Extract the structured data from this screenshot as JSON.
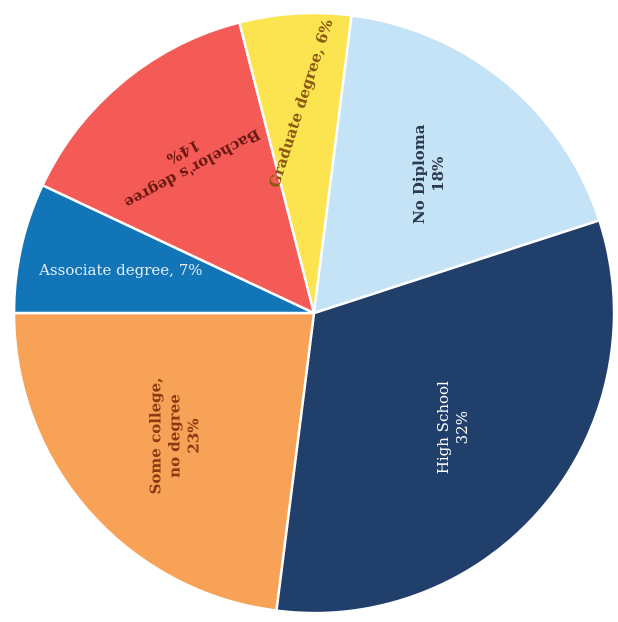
{
  "chart_data": {
    "type": "pie",
    "title": "",
    "start_angle_deg": -18,
    "direction": "clockwise",
    "slices": [
      {
        "name": "High School",
        "value": 32,
        "value_label": "32%",
        "color": "#213f6b",
        "text_color": "#ffffff",
        "bold": false,
        "label_lines": [
          "High School",
          "32%"
        ],
        "label_rotation": -90
      },
      {
        "name": "Some college, no degree",
        "value": 23,
        "value_label": "23%",
        "color": "#f8a257",
        "text_color": "#8a3a10",
        "bold": true,
        "label_lines": [
          "Some college,",
          "no degree",
          "23%"
        ],
        "label_rotation": -90
      },
      {
        "name": "Associate degree",
        "value": 7,
        "value_label": "7%",
        "color": "#1175b7",
        "text_color": "#e3eef7",
        "bold": false,
        "label_lines": [
          "Associate degree, 7%"
        ],
        "label_rotation": 0
      },
      {
        "name": "Bachelor's degree",
        "value": 14,
        "value_label": "14%",
        "color": "#f45b57",
        "text_color": "#6b1a12",
        "bold": true,
        "label_lines": [
          "Bachelor's degree",
          "14%"
        ],
        "label_rotation": 152
      },
      {
        "name": "Graduate degree",
        "value": 6,
        "value_label": "6%",
        "color": "#fce350",
        "text_color": "#8a5a10",
        "bold": true,
        "label_lines": [
          "Graduate degree, 6%"
        ],
        "label_rotation": -72
      },
      {
        "name": "No Diploma",
        "value": 18,
        "value_label": "18%",
        "color": "#c5e3f7",
        "text_color": "#2c3a4e",
        "bold": true,
        "label_lines": [
          "No Diploma",
          "18%"
        ],
        "label_rotation": -90
      }
    ]
  }
}
